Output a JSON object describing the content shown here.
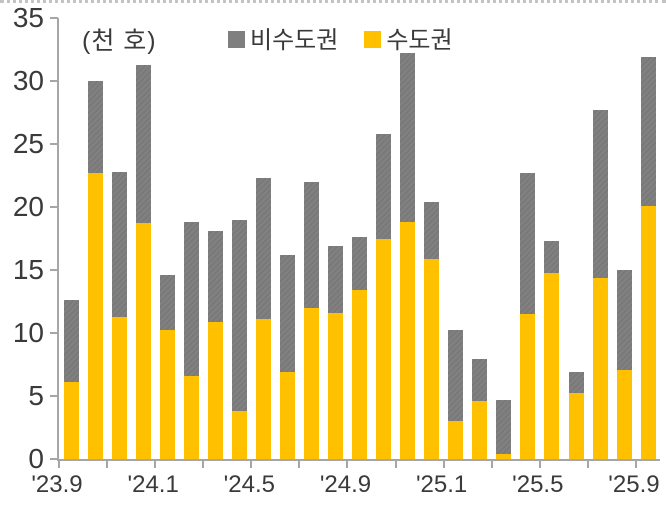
{
  "chart_data": {
    "type": "bar",
    "stacked": true,
    "unit_label": "(천 호)",
    "grid": false,
    "legend_position": "top-center",
    "legend": [
      {
        "label": "비수도권",
        "color": "#7F7F7F"
      },
      {
        "label": "수도권",
        "color": "#FFC000"
      }
    ],
    "x": [
      "'23.9",
      "'23.10",
      "'23.11",
      "'23.12",
      "'24.1",
      "'24.2",
      "'24.3",
      "'24.4",
      "'24.5",
      "'24.6",
      "'24.7",
      "'24.8",
      "'24.9",
      "'24.10",
      "'24.11",
      "'24.12",
      "'25.1",
      "'25.2",
      "'25.3",
      "'25.4",
      "'25.5",
      "'25.6",
      "'25.7",
      "'25.8",
      "'25.9"
    ],
    "x_tick_labels": [
      "'23.9",
      "'24.1",
      "'24.5",
      "'24.9",
      "'25.1",
      "'25.5",
      "'25.9"
    ],
    "x_tick_label_indices": [
      0,
      4,
      8,
      12,
      16,
      20,
      24
    ],
    "series": [
      {
        "name": "수도권",
        "color": "#FFC000",
        "stack_order": "bottom",
        "values": [
          6.1,
          22.7,
          11.3,
          18.7,
          10.2,
          6.6,
          10.9,
          3.8,
          11.1,
          6.9,
          12.0,
          11.6,
          13.4,
          17.5,
          18.8,
          15.9,
          3.0,
          4.6,
          0.4,
          11.5,
          14.8,
          5.2,
          14.4,
          7.1,
          20.1
        ]
      },
      {
        "name": "비수도권",
        "color": "#7F7F7F",
        "stack_order": "top",
        "values": [
          6.5,
          7.3,
          11.5,
          12.6,
          4.4,
          12.2,
          7.2,
          15.2,
          11.2,
          9.3,
          10.0,
          5.3,
          4.2,
          8.3,
          13.4,
          4.5,
          7.2,
          3.3,
          4.3,
          11.2,
          2.5,
          1.7,
          13.3,
          7.9,
          11.8
        ]
      }
    ],
    "ylim": [
      0,
      35
    ],
    "yticks": [
      0,
      5,
      10,
      15,
      20,
      25,
      30,
      35
    ]
  }
}
